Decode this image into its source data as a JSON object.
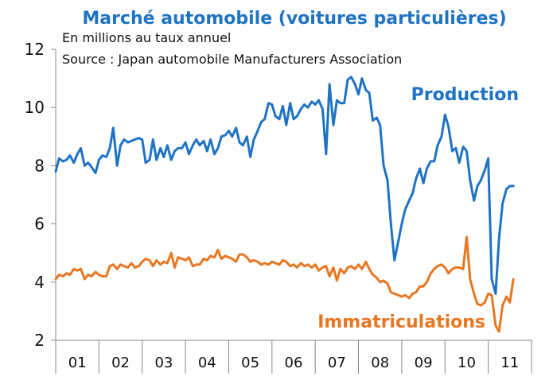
{
  "chart_data": {
    "type": "line",
    "title": "Marché automobile (voitures particulières)",
    "notes": [
      "En millions au taux annuel",
      "Source : Japan automobile Manufacturers Association"
    ],
    "ylim": [
      2,
      12
    ],
    "yticks": [
      2,
      4,
      6,
      8,
      10,
      12
    ],
    "xlim": [
      2001,
      2012
    ],
    "categories": [
      "01",
      "02",
      "03",
      "04",
      "05",
      "06",
      "07",
      "08",
      "09",
      "10",
      "11"
    ],
    "colors": {
      "production": "#1f73c4",
      "immatriculations": "#e87722",
      "title": "#1f73c4"
    },
    "series": [
      {
        "name": "Production",
        "color": "#1f73c4",
        "x": [
          2001.0,
          2001.08,
          2001.17,
          2001.25,
          2001.33,
          2001.42,
          2001.5,
          2001.58,
          2001.67,
          2001.75,
          2001.83,
          2001.92,
          2002.0,
          2002.08,
          2002.17,
          2002.25,
          2002.33,
          2002.42,
          2002.5,
          2002.58,
          2002.67,
          2002.75,
          2002.83,
          2002.92,
          2003.0,
          2003.08,
          2003.17,
          2003.25,
          2003.33,
          2003.42,
          2003.5,
          2003.58,
          2003.67,
          2003.75,
          2003.83,
          2003.92,
          2004.0,
          2004.08,
          2004.17,
          2004.25,
          2004.33,
          2004.42,
          2004.5,
          2004.58,
          2004.67,
          2004.75,
          2004.83,
          2004.92,
          2005.0,
          2005.08,
          2005.17,
          2005.25,
          2005.33,
          2005.42,
          2005.5,
          2005.58,
          2005.67,
          2005.75,
          2005.83,
          2005.92,
          2006.0,
          2006.08,
          2006.17,
          2006.25,
          2006.33,
          2006.42,
          2006.5,
          2006.58,
          2006.67,
          2006.75,
          2006.83,
          2006.92,
          2007.0,
          2007.08,
          2007.17,
          2007.25,
          2007.33,
          2007.42,
          2007.5,
          2007.58,
          2007.67,
          2007.75,
          2007.83,
          2007.92,
          2008.0,
          2008.08,
          2008.17,
          2008.25,
          2008.33,
          2008.42,
          2008.5,
          2008.58,
          2008.67,
          2008.75,
          2008.83,
          2008.92,
          2009.0,
          2009.08,
          2009.17,
          2009.25,
          2009.33,
          2009.42,
          2009.5,
          2009.58,
          2009.67,
          2009.75,
          2009.83,
          2009.92,
          2010.0,
          2010.08,
          2010.17,
          2010.25,
          2010.33,
          2010.42,
          2010.5,
          2010.58,
          2010.67,
          2010.75,
          2010.83,
          2010.92,
          2011.0,
          2011.08,
          2011.17,
          2011.25,
          2011.33,
          2011.42,
          2011.5,
          2011.58
        ],
        "values": [
          7.8,
          8.25,
          8.15,
          8.2,
          8.35,
          8.1,
          8.4,
          8.6,
          8.0,
          8.1,
          7.95,
          7.75,
          8.2,
          8.35,
          8.3,
          8.6,
          9.3,
          8.0,
          8.7,
          8.9,
          8.8,
          8.85,
          8.9,
          8.95,
          8.9,
          8.1,
          8.2,
          8.9,
          8.2,
          8.6,
          8.3,
          8.7,
          8.2,
          8.5,
          8.6,
          8.6,
          8.8,
          8.4,
          8.7,
          8.9,
          8.7,
          8.85,
          8.5,
          8.9,
          8.4,
          8.6,
          9.0,
          9.05,
          9.2,
          9.0,
          9.3,
          8.8,
          8.7,
          9.0,
          8.3,
          8.9,
          9.2,
          9.5,
          9.6,
          10.15,
          10.1,
          9.7,
          9.6,
          10.05,
          9.4,
          10.15,
          9.6,
          9.7,
          9.95,
          10.1,
          10.0,
          10.2,
          10.1,
          10.25,
          9.95,
          8.4,
          10.8,
          9.4,
          10.25,
          10.15,
          10.15,
          10.95,
          11.05,
          10.8,
          10.45,
          11.0,
          10.6,
          10.5,
          9.55,
          9.65,
          9.4,
          8.0,
          7.5,
          6.0,
          4.75,
          5.4,
          6.0,
          6.5,
          6.8,
          7.05,
          7.55,
          7.9,
          7.4,
          7.9,
          8.15,
          8.15,
          8.7,
          9.0,
          9.75,
          9.35,
          8.5,
          8.6,
          8.1,
          8.65,
          8.5,
          7.5,
          6.8,
          7.3,
          7.5,
          7.85,
          8.25,
          4.1,
          3.6,
          5.5,
          6.7,
          7.2,
          7.3,
          7.3
        ],
        "label": "Production"
      },
      {
        "name": "Immatriculations",
        "color": "#e87722",
        "x": [
          2001.0,
          2001.08,
          2001.17,
          2001.25,
          2001.33,
          2001.42,
          2001.5,
          2001.58,
          2001.67,
          2001.75,
          2001.83,
          2001.92,
          2002.0,
          2002.08,
          2002.17,
          2002.25,
          2002.33,
          2002.42,
          2002.5,
          2002.58,
          2002.67,
          2002.75,
          2002.83,
          2002.92,
          2003.0,
          2003.08,
          2003.17,
          2003.25,
          2003.33,
          2003.42,
          2003.5,
          2003.58,
          2003.67,
          2003.75,
          2003.83,
          2003.92,
          2004.0,
          2004.08,
          2004.17,
          2004.25,
          2004.33,
          2004.42,
          2004.5,
          2004.58,
          2004.67,
          2004.75,
          2004.83,
          2004.92,
          2005.0,
          2005.08,
          2005.17,
          2005.25,
          2005.33,
          2005.42,
          2005.5,
          2005.58,
          2005.67,
          2005.75,
          2005.83,
          2005.92,
          2006.0,
          2006.08,
          2006.17,
          2006.25,
          2006.33,
          2006.42,
          2006.5,
          2006.58,
          2006.67,
          2006.75,
          2006.83,
          2006.92,
          2007.0,
          2007.08,
          2007.17,
          2007.25,
          2007.33,
          2007.42,
          2007.5,
          2007.58,
          2007.67,
          2007.75,
          2007.83,
          2007.92,
          2008.0,
          2008.08,
          2008.17,
          2008.25,
          2008.33,
          2008.42,
          2008.5,
          2008.58,
          2008.67,
          2008.75,
          2008.83,
          2008.92,
          2009.0,
          2009.08,
          2009.17,
          2009.25,
          2009.33,
          2009.42,
          2009.5,
          2009.58,
          2009.67,
          2009.75,
          2009.83,
          2009.92,
          2010.0,
          2010.08,
          2010.17,
          2010.25,
          2010.33,
          2010.42,
          2010.5,
          2010.58,
          2010.67,
          2010.75,
          2010.83,
          2010.92,
          2011.0,
          2011.08,
          2011.17,
          2011.25,
          2011.33,
          2011.42,
          2011.5,
          2011.58
        ],
        "values": [
          4.1,
          4.25,
          4.2,
          4.3,
          4.25,
          4.45,
          4.4,
          4.45,
          4.1,
          4.25,
          4.2,
          4.35,
          4.25,
          4.2,
          4.2,
          4.55,
          4.6,
          4.45,
          4.6,
          4.55,
          4.5,
          4.65,
          4.5,
          4.55,
          4.7,
          4.8,
          4.75,
          4.55,
          4.75,
          4.6,
          4.7,
          4.65,
          5.0,
          4.5,
          4.85,
          4.8,
          4.75,
          4.85,
          4.55,
          4.6,
          4.6,
          4.8,
          4.75,
          4.9,
          4.85,
          5.1,
          4.8,
          4.9,
          4.85,
          4.8,
          4.7,
          4.95,
          4.95,
          4.85,
          4.7,
          4.75,
          4.7,
          4.6,
          4.65,
          4.6,
          4.7,
          4.65,
          4.6,
          4.75,
          4.7,
          4.55,
          4.6,
          4.5,
          4.65,
          4.55,
          4.6,
          4.5,
          4.6,
          4.4,
          4.5,
          4.55,
          4.2,
          4.5,
          4.05,
          4.45,
          4.3,
          4.5,
          4.55,
          4.45,
          4.6,
          4.45,
          4.7,
          4.45,
          4.25,
          4.15,
          4.0,
          4.05,
          3.95,
          3.65,
          3.6,
          3.55,
          3.5,
          3.55,
          3.45,
          3.6,
          3.65,
          3.85,
          3.85,
          4.0,
          4.3,
          4.45,
          4.55,
          4.6,
          4.5,
          4.3,
          4.45,
          4.5,
          4.5,
          4.45,
          5.55,
          4.1,
          3.6,
          3.25,
          3.2,
          3.3,
          3.6,
          3.55,
          2.5,
          2.3,
          3.2,
          3.5,
          3.3,
          4.1
        ],
        "label": "Immatriculations"
      }
    ]
  }
}
